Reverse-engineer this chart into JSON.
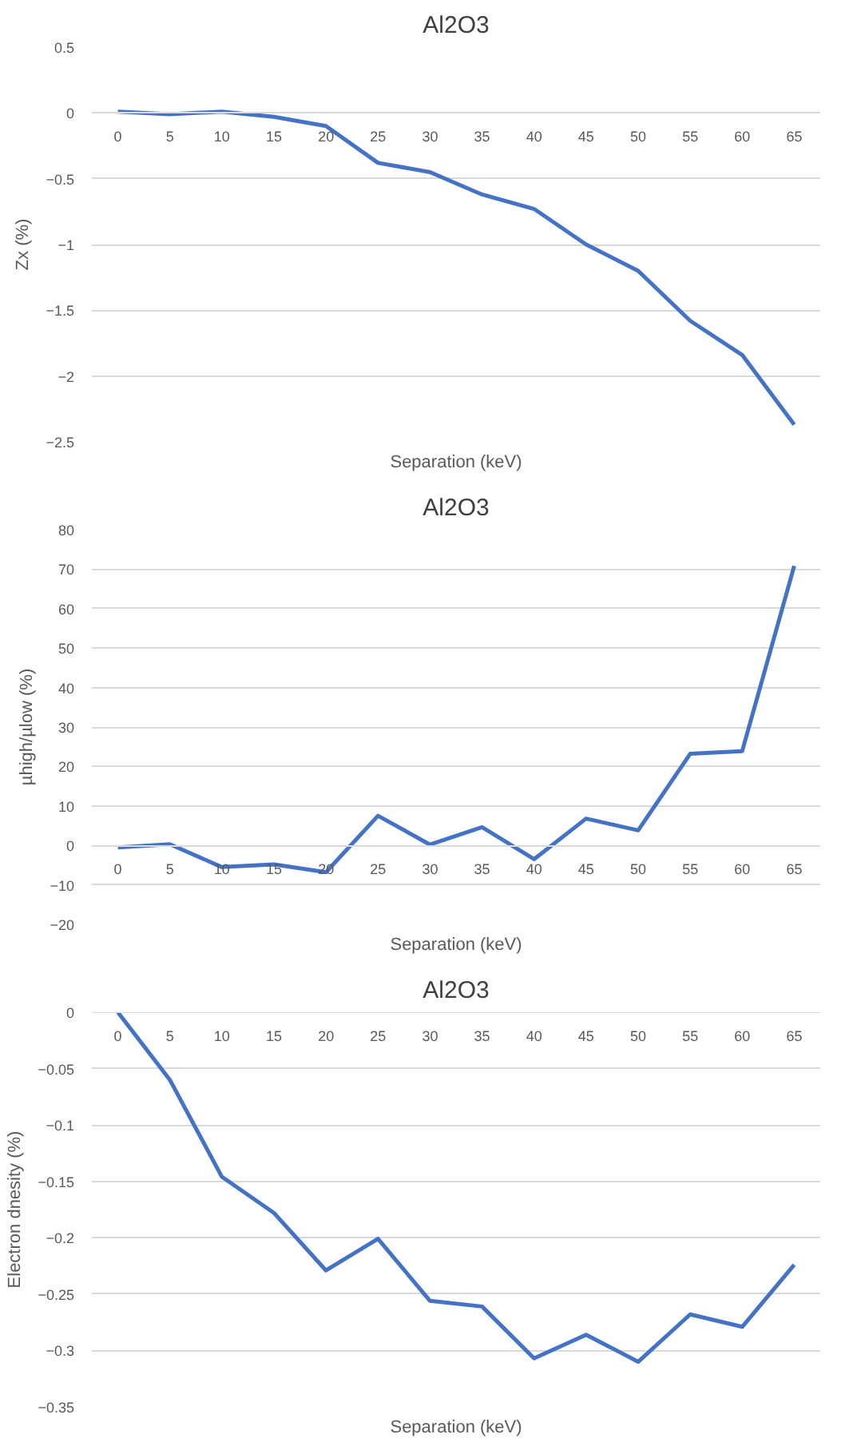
{
  "chart_data": [
    {
      "type": "line",
      "title": "Al2O3",
      "xlabel": "Separation (keV)",
      "ylabel": "Zx (%)",
      "categories": [
        "0",
        "5",
        "10",
        "15",
        "20",
        "25",
        "30",
        "35",
        "40",
        "45",
        "50",
        "55",
        "60",
        "65"
      ],
      "series": [
        {
          "color": "#4472c4",
          "values": [
            0.01,
            -0.01,
            0.01,
            -0.03,
            -0.1,
            -0.38,
            -0.45,
            -0.62,
            -0.73,
            -1.0,
            -1.2,
            -1.58,
            -1.84,
            -2.37
          ]
        }
      ],
      "ylim": [
        -2.5,
        0.5
      ],
      "yticks": [
        -2.5,
        -2,
        -1.5,
        -1,
        -0.5,
        0,
        0.5
      ],
      "grid": "y"
    },
    {
      "type": "line",
      "title": "Al2O3",
      "xlabel": "Separation (keV)",
      "ylabel": "µhigh/µlow (%)",
      "categories": [
        "0",
        "5",
        "10",
        "15",
        "20",
        "25",
        "30",
        "35",
        "40",
        "45",
        "50",
        "55",
        "60",
        "65"
      ],
      "series": [
        {
          "color": "#4472c4",
          "values": [
            -0.5,
            0.3,
            -5.5,
            -4.8,
            -6.8,
            7.5,
            0.2,
            4.6,
            -3.5,
            6.8,
            3.8,
            23.2,
            23.9,
            70.8
          ]
        }
      ],
      "ylim": [
        -20,
        80
      ],
      "yticks": [
        -20,
        -10,
        0,
        10,
        20,
        30,
        40,
        50,
        60,
        70,
        80
      ],
      "grid": "y"
    },
    {
      "type": "line",
      "title": "Al2O3",
      "xlabel": "Separation (keV)",
      "ylabel": "Electron dnesity (%)",
      "categories": [
        "0",
        "5",
        "10",
        "15",
        "20",
        "25",
        "30",
        "35",
        "40",
        "45",
        "50",
        "55",
        "60",
        "65"
      ],
      "series": [
        {
          "color": "#4472c4",
          "values": [
            0,
            -0.06,
            -0.146,
            -0.178,
            -0.229,
            -0.201,
            -0.256,
            -0.261,
            -0.307,
            -0.286,
            -0.31,
            -0.268,
            -0.279,
            -0.224
          ]
        }
      ],
      "ylim": [
        -0.35,
        0
      ],
      "yticks": [
        -0.35,
        -0.3,
        -0.25,
        -0.2,
        -0.15,
        -0.1,
        -0.05,
        0
      ],
      "grid": "y"
    }
  ]
}
